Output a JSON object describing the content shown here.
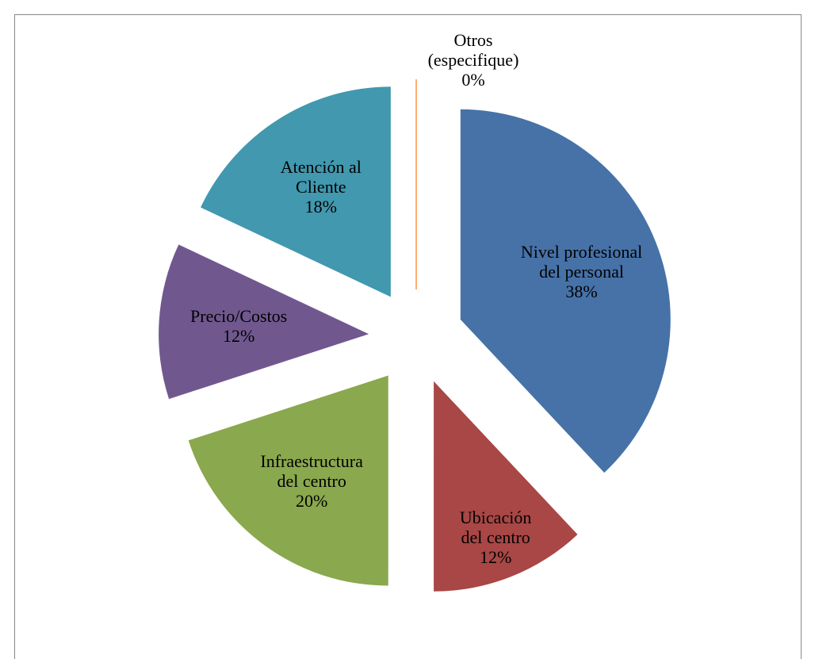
{
  "chart_data": {
    "type": "pie",
    "categories": [
      "Nivel profesional del personal",
      "Ubicación del centro",
      "Infraestructura del centro",
      "Precio/Costos",
      "Atención al Cliente",
      "Otros (especifique)"
    ],
    "values": [
      38,
      12,
      20,
      12,
      18,
      0
    ],
    "value_labels": [
      "38%",
      "12%",
      "20%",
      "12%",
      "18%",
      "0%"
    ],
    "colors": [
      "#4672a8",
      "#a84745",
      "#8aa84d",
      "#70588f",
      "#4198af",
      "#f79646"
    ]
  }
}
